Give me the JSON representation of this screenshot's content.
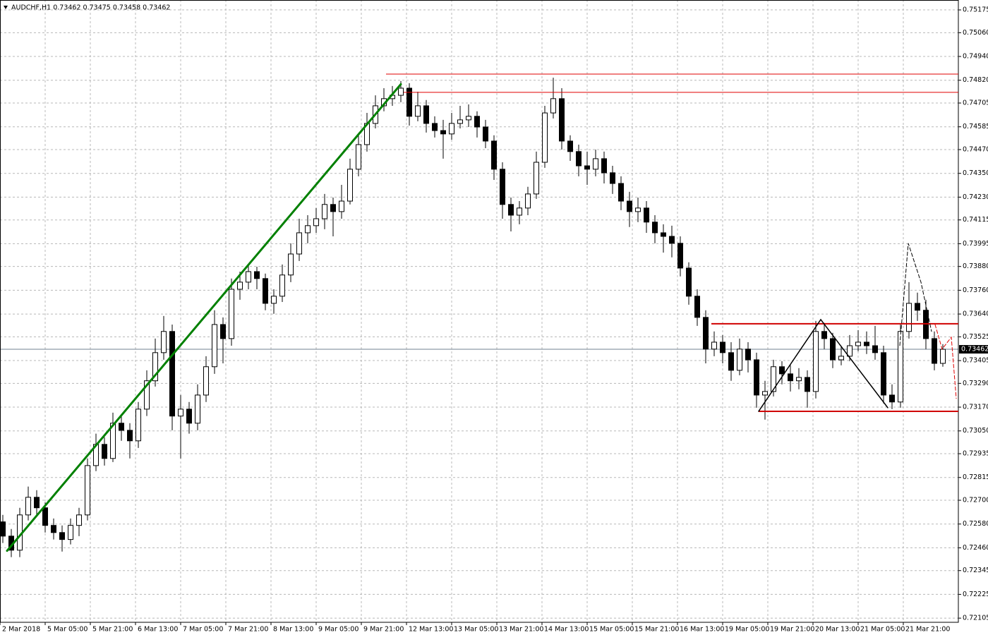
{
  "chart_data": {
    "type": "candlestick",
    "title": "AUDCHF,H1  0.73462 0.73475 0.73458 0.73462",
    "grid": true,
    "up_color": "#ffffff",
    "down_color": "#000000",
    "wick_color": "#000000",
    "xlim": [
      0,
      339.5
    ],
    "ylim": [
      0.72084,
      0.75225
    ],
    "xticks": [
      {
        "value": 0,
        "label": "2 Mar 2018"
      },
      {
        "value": 16,
        "label": "5 Mar 05:00"
      },
      {
        "value": 32,
        "label": "5 Mar 21:00"
      },
      {
        "value": 48,
        "label": "6 Mar 13:00"
      },
      {
        "value": 64,
        "label": "7 Mar 05:00"
      },
      {
        "value": 80,
        "label": "7 Mar 21:00"
      },
      {
        "value": 96,
        "label": "8 Mar 13:00"
      },
      {
        "value": 112,
        "label": "9 Mar 05:00"
      },
      {
        "value": 128,
        "label": "9 Mar 21:00"
      },
      {
        "value": 144,
        "label": "12 Mar 13:00"
      },
      {
        "value": 160,
        "label": "13 Mar 05:00"
      },
      {
        "value": 176,
        "label": "13 Mar 21:00"
      },
      {
        "value": 192,
        "label": "14 Mar 13:00"
      },
      {
        "value": 208,
        "label": "15 Mar 05:00"
      },
      {
        "value": 224,
        "label": "15 Mar 21:00"
      },
      {
        "value": 240,
        "label": "16 Mar 13:00"
      },
      {
        "value": 256,
        "label": "19 Mar 05:00"
      },
      {
        "value": 272,
        "label": "19 Mar 21:00"
      },
      {
        "value": 288,
        "label": "20 Mar 13:00"
      },
      {
        "value": 304,
        "label": "21 Mar 05:00"
      },
      {
        "value": 320,
        "label": "21 Mar 21:00"
      }
    ],
    "yticks": [
      0.75175,
      {
        "value": 0.7506,
        "label": "0.75060"
      },
      {
        "value": 0.7494,
        "label": "0.74940"
      },
      {
        "value": 0.7482,
        "label": "0.74820"
      },
      0.74705,
      0.74585,
      {
        "value": 0.7447,
        "label": "0.74470"
      },
      {
        "value": 0.7435,
        "label": "0.74350"
      },
      {
        "value": 0.7423,
        "label": "0.74230"
      },
      0.74115,
      0.73995,
      {
        "value": 0.7388,
        "label": "0.73880"
      },
      {
        "value": 0.7376,
        "label": "0.73760"
      },
      {
        "value": 0.7364,
        "label": "0.73640"
      },
      0.73525,
      0.73405,
      {
        "value": 0.7329,
        "label": "0.73290"
      },
      {
        "value": 0.7317,
        "label": "0.73170"
      },
      {
        "value": 0.7305,
        "label": "0.73050"
      },
      0.72935,
      0.72815,
      {
        "value": 0.727,
        "label": "0.72700"
      },
      {
        "value": 0.7258,
        "label": "0.72580"
      },
      {
        "value": 0.7246,
        "label": "0.72460"
      },
      0.72345,
      0.72225,
      0.72105
    ],
    "last_price": 0.73462,
    "last_price_color": "#708090",
    "x": [
      1,
      4,
      7,
      10,
      13,
      16,
      19,
      22,
      25,
      28,
      31,
      34,
      37,
      40,
      43,
      46,
      49,
      52,
      55,
      58,
      61,
      64,
      67,
      70,
      73,
      76,
      79,
      82,
      85,
      88,
      91,
      94,
      97,
      100,
      103,
      106,
      109,
      112,
      115,
      118,
      121,
      124,
      127,
      130,
      133,
      136,
      139,
      142,
      145,
      148,
      151,
      154,
      157,
      160,
      163,
      166,
      169,
      172,
      175,
      178,
      181,
      184,
      187,
      190,
      193,
      196,
      199,
      202,
      205,
      208,
      211,
      214,
      217,
      220,
      223,
      226,
      229,
      232,
      235,
      238,
      241,
      244,
      247,
      250,
      253,
      256,
      259,
      262,
      265,
      268,
      271,
      274,
      277,
      280,
      283,
      286,
      289,
      292,
      295,
      298,
      301,
      304,
      307,
      310,
      313,
      316,
      319,
      322,
      325,
      328,
      331,
      334
    ],
    "open": [
      0.72591,
      0.72519,
      0.72448,
      0.72626,
      0.72715,
      0.72662,
      0.72573,
      0.72537,
      0.72502,
      0.72573,
      0.72626,
      0.72875,
      0.72982,
      0.72911,
      0.73089,
      0.73053,
      0.73,
      0.7316,
      0.73303,
      0.73445,
      0.73552,
      0.73125,
      0.7316,
      0.73089,
      0.73231,
      0.73374,
      0.73587,
      0.73516,
      0.73765,
      0.73801,
      0.73854,
      0.73819,
      0.73694,
      0.7373,
      0.73837,
      0.73943,
      0.7405,
      0.74086,
      0.74121,
      0.74193,
      0.74157,
      0.7421,
      0.74371,
      0.74495,
      0.74602,
      0.74691,
      0.74727,
      0.74744,
      0.7478,
      0.74638,
      0.74691,
      0.74602,
      0.74566,
      0.74549,
      0.74602,
      0.7462,
      0.74638,
      0.74584,
      0.74513,
      0.74371,
      0.74193,
      0.74139,
      0.74175,
      0.74246,
      0.74406,
      0.74655,
      0.74727,
      0.74513,
      0.7446,
      0.74388,
      0.74371,
      0.74424,
      0.74353,
      0.74299,
      0.7421,
      0.74157,
      0.74175,
      0.74104,
      0.7405,
      0.74032,
      0.73997,
      0.73872,
      0.7373,
      0.73623,
      0.73463,
      0.73498,
      0.73445,
      0.73356,
      0.73463,
      0.73409,
      0.73231,
      0.73249,
      0.73374,
      0.73338,
      0.73303,
      0.7332,
      0.73249,
      0.73552,
      0.73516,
      0.73409,
      0.73427,
      0.7348,
      0.73498,
      0.7348,
      0.73445,
      0.73231,
      0.73196,
      0.73552,
      0.73694,
      0.73659,
      0.73516,
      0.73391
    ],
    "high": [
      0.72626,
      0.72555,
      0.72662,
      0.72769,
      0.72751,
      0.7269,
      0.72608,
      0.72573,
      0.72608,
      0.72662,
      0.72911,
      0.73036,
      0.73018,
      0.73142,
      0.73125,
      0.73089,
      0.73196,
      0.73356,
      0.73516,
      0.7363,
      0.73587,
      0.73231,
      0.73196,
      0.73285,
      0.73427,
      0.73659,
      0.73623,
      0.73819,
      0.73854,
      0.7389,
      0.73879,
      0.73844,
      0.73765,
      0.7389,
      0.73997,
      0.74121,
      0.74139,
      0.74175,
      0.74246,
      0.74228,
      0.74292,
      0.74424,
      0.74549,
      0.74655,
      0.74744,
      0.7478,
      0.74791,
      0.74816,
      0.74805,
      0.74762,
      0.7472,
      0.74638,
      0.7462,
      0.74655,
      0.74691,
      0.74698,
      0.74663,
      0.7462,
      0.74542,
      0.74406,
      0.74228,
      0.7421,
      0.74282,
      0.7446,
      0.74691,
      0.74833,
      0.7478,
      0.74542,
      0.74495,
      0.7446,
      0.7447,
      0.7446,
      0.74388,
      0.74335,
      0.74257,
      0.74228,
      0.7421,
      0.74139,
      0.74093,
      0.74086,
      0.74032,
      0.73901,
      0.73765,
      0.73659,
      0.73552,
      0.73534,
      0.73498,
      0.73516,
      0.73498,
      0.73445,
      0.73303,
      0.73409,
      0.73402,
      0.73381,
      0.73367,
      0.73356,
      0.73605,
      0.73595,
      0.73545,
      0.7348,
      0.73534,
      0.73559,
      0.73552,
      0.7358,
      0.7348,
      0.73285,
      0.73587,
      0.73801,
      0.73748,
      0.73712,
      0.73552,
      0.73488
    ],
    "low": [
      0.72484,
      0.72413,
      0.72413,
      0.72598,
      0.72626,
      0.72537,
      0.72502,
      0.72441,
      0.72477,
      0.72519,
      0.72598,
      0.72847,
      0.72875,
      0.72893,
      0.73,
      0.72911,
      0.72964,
      0.73125,
      0.73274,
      0.73409,
      0.73053,
      0.72911,
      0.73036,
      0.73053,
      0.73196,
      0.73338,
      0.73391,
      0.7348,
      0.73712,
      0.73765,
      0.73765,
      0.73659,
      0.73641,
      0.73701,
      0.73801,
      0.73908,
      0.73997,
      0.7405,
      0.74068,
      0.74032,
      0.74121,
      0.74193,
      0.74335,
      0.7446,
      0.74577,
      0.74663,
      0.74691,
      0.74709,
      0.74591,
      0.74613,
      0.74556,
      0.74531,
      0.74424,
      0.7452,
      0.74577,
      0.74584,
      0.74531,
      0.74477,
      0.74317,
      0.74121,
      0.74057,
      0.74093,
      0.74139,
      0.74221,
      0.74378,
      0.74627,
      0.7447,
      0.74413,
      0.74335,
      0.74292,
      0.74335,
      0.74299,
      0.74246,
      0.74164,
      0.74079,
      0.74104,
      0.7405,
      0.73997,
      0.7395,
      0.73926,
      0.7383,
      0.73687,
      0.7358,
      0.73391,
      0.73427,
      0.73391,
      0.73303,
      0.73331,
      0.73345,
      0.73167,
      0.73107,
      0.73224,
      0.73285,
      0.73249,
      0.7326,
      0.73167,
      0.73214,
      0.73463,
      0.73367,
      0.73381,
      0.73402,
      0.73452,
      0.73438,
      0.73409,
      0.73189,
      0.7316,
      0.73167,
      0.73516,
      0.73605,
      0.73463,
      0.73356,
      0.73374
    ],
    "close": [
      0.72519,
      0.72448,
      0.72626,
      0.72715,
      0.72662,
      0.72573,
      0.72537,
      0.72502,
      0.72573,
      0.72626,
      0.72875,
      0.72982,
      0.72911,
      0.73089,
      0.73053,
      0.73,
      0.7316,
      0.73303,
      0.73445,
      0.73552,
      0.73125,
      0.7316,
      0.73089,
      0.73231,
      0.73374,
      0.73587,
      0.73516,
      0.73765,
      0.73801,
      0.73854,
      0.73819,
      0.73694,
      0.7373,
      0.73837,
      0.73943,
      0.7405,
      0.74086,
      0.74121,
      0.74193,
      0.74157,
      0.7421,
      0.74371,
      0.74495,
      0.74602,
      0.74691,
      0.74727,
      0.74744,
      0.7478,
      0.74638,
      0.74691,
      0.74602,
      0.74566,
      0.74549,
      0.74602,
      0.7462,
      0.74638,
      0.74584,
      0.74513,
      0.74371,
      0.74193,
      0.74139,
      0.74175,
      0.74246,
      0.74406,
      0.74655,
      0.74727,
      0.74513,
      0.7446,
      0.74388,
      0.74371,
      0.74424,
      0.74353,
      0.74299,
      0.7421,
      0.74157,
      0.74175,
      0.74104,
      0.7405,
      0.74032,
      0.73997,
      0.73872,
      0.7373,
      0.73623,
      0.73463,
      0.73498,
      0.73445,
      0.73356,
      0.73463,
      0.73409,
      0.73231,
      0.73249,
      0.73374,
      0.73338,
      0.73303,
      0.7332,
      0.73249,
      0.73552,
      0.73516,
      0.73409,
      0.73427,
      0.7348,
      0.73498,
      0.7348,
      0.73445,
      0.73231,
      0.73196,
      0.73552,
      0.73694,
      0.73659,
      0.73516,
      0.73391,
      0.73462
    ],
    "hlines": [
      {
        "value": 0.74851,
        "from": 136.75,
        "color": "#e00000",
        "width": 1
      },
      {
        "value": 0.74759,
        "from": 143,
        "color": "#e00000",
        "width": 1
      },
      {
        "value": 0.73591,
        "from": 252,
        "color": "#d00000",
        "width": 2
      },
      {
        "value": 0.73149,
        "from": 268.75,
        "color": "#d00000",
        "width": 2
      }
    ],
    "polylines": [
      {
        "color": "#008000",
        "width": 3,
        "dashed": false,
        "x": [
          2.5,
          142
        ],
        "y": [
          0.72445,
          0.748
        ]
      },
      {
        "color": "#000000",
        "width": 1.5,
        "dashed": false,
        "x": [
          268.75,
          290.75,
          314.5
        ],
        "y": [
          0.73149,
          0.73612,
          0.73167
        ]
      },
      {
        "color": "#000000",
        "width": 1,
        "dashed": true,
        "x": [
          318.75,
          321.75,
          326.25,
          330
        ],
        "y": [
          0.73481,
          0.73997,
          0.73801,
          0.73552
        ]
      },
      {
        "color": "#e00000",
        "width": 1,
        "dashed": true,
        "x": [
          331.25,
          333.75,
          337,
          338.75
        ],
        "y": [
          0.73587,
          0.73463,
          0.73523,
          0.73214
        ]
      }
    ]
  }
}
